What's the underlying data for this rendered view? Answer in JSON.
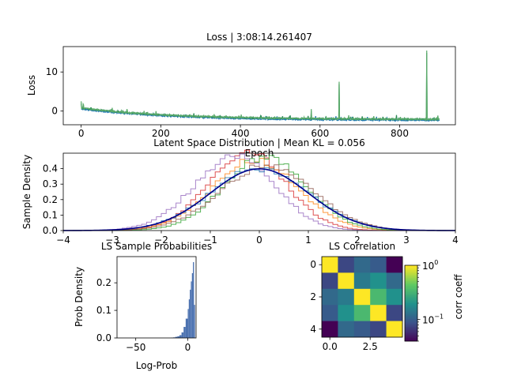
{
  "figure": {
    "background": "#ffffff"
  },
  "chart_data": [
    {
      "id": "loss",
      "type": "line",
      "title": "Loss | 3:08:14.261407",
      "xlabel": "Epoch",
      "ylabel": "Loss",
      "xlim": [
        -45,
        940
      ],
      "ylim": [
        -3.5,
        16.5
      ],
      "xticks": [
        0,
        200,
        400,
        600,
        800
      ],
      "yticks": [
        0,
        10
      ],
      "grid": false,
      "legend": "none",
      "colors": [
        "#1f77b4",
        "#2e8b57",
        "#5aaa6a"
      ],
      "x_range": [
        0,
        900
      ],
      "baseline_start": 0.8,
      "baseline_end": -2.1,
      "spikes": [
        {
          "epoch": 0,
          "loss": 2.5
        },
        {
          "epoch": 5,
          "loss": 1.8
        },
        {
          "epoch": 75,
          "loss": 0.5
        },
        {
          "epoch": 165,
          "loss": -0.3
        },
        {
          "epoch": 402,
          "loss": -0.9
        },
        {
          "epoch": 578,
          "loss": 0.5
        },
        {
          "epoch": 648,
          "loss": 7.5
        },
        {
          "epoch": 868,
          "loss": 15.5
        }
      ]
    },
    {
      "id": "latent",
      "type": "line",
      "title": "Latent Space Distribution | Mean KL = 0.056",
      "xlabel": "",
      "ylabel": "Sample Density",
      "xlim": [
        -4,
        4
      ],
      "ylim": [
        0,
        0.5
      ],
      "xticks": [
        -4,
        -3,
        -2,
        -1,
        0,
        1,
        2,
        3,
        4
      ],
      "yticks": [
        0.0,
        0.1,
        0.2,
        0.3,
        0.4
      ],
      "grid": false,
      "legend": "none",
      "reference": {
        "kind": "standard-normal",
        "mean": 0,
        "std": 1,
        "color": "#00008b"
      },
      "histograms": [
        {
          "mean": 0.05,
          "std": 0.85,
          "color": "#d62728",
          "skew": -0.5
        },
        {
          "mean": 0.12,
          "std": 0.9,
          "color": "#ff7f0e",
          "skew": -0.3
        },
        {
          "mean": 0.25,
          "std": 0.85,
          "color": "#2ca02c",
          "skew": -0.2
        },
        {
          "mean": -0.05,
          "std": 0.95,
          "color": "#9467bd",
          "skew": -0.8
        },
        {
          "mean": 0.15,
          "std": 0.95,
          "color": "#8c564b",
          "skew": 0.0
        },
        {
          "mean": 0.0,
          "std": 1.0,
          "color": "#1f77b4",
          "skew": 0.0
        }
      ]
    },
    {
      "id": "ls-prob",
      "type": "bar",
      "title": "LS Sample Probabilities",
      "xlabel": "Log-Prob",
      "ylabel": "Prob Density",
      "xlim": [
        -68,
        8
      ],
      "ylim": [
        0,
        0.295
      ],
      "xticks": [
        -50,
        0
      ],
      "yticks": [
        0.0,
        0.1,
        0.2
      ],
      "grid": false,
      "legend": "none",
      "color": "#4c72b0",
      "bins": [
        {
          "x0": -16,
          "x1": -14,
          "y": 0.001
        },
        {
          "x0": -14,
          "x1": -12,
          "y": 0.002
        },
        {
          "x0": -12,
          "x1": -10,
          "y": 0.004
        },
        {
          "x0": -10,
          "x1": -8,
          "y": 0.006
        },
        {
          "x0": -8,
          "x1": -6,
          "y": 0.01
        },
        {
          "x0": -6,
          "x1": -4,
          "y": 0.02
        },
        {
          "x0": -4,
          "x1": -2,
          "y": 0.04
        },
        {
          "x0": -2,
          "x1": 0,
          "y": 0.07
        },
        {
          "x0": 0,
          "x1": 1,
          "y": 0.105
        },
        {
          "x0": 1,
          "x1": 2,
          "y": 0.14
        },
        {
          "x0": 2,
          "x1": 3,
          "y": 0.175
        },
        {
          "x0": 3,
          "x1": 4,
          "y": 0.205
        },
        {
          "x0": 4,
          "x1": 5,
          "y": 0.235
        },
        {
          "x0": 5,
          "x1": 6,
          "y": 0.275
        },
        {
          "x0": 6,
          "x1": 7,
          "y": 0.12
        }
      ]
    },
    {
      "id": "ls-corr",
      "type": "heatmap",
      "title": "LS Correlation",
      "xlabel": "",
      "ylabel": "",
      "xticks": [
        0.0,
        2.5
      ],
      "yticks": [
        0,
        2,
        4
      ],
      "colormap": "viridis",
      "color_scale": "log",
      "colorbar_label": "corr coeff",
      "colorbar_ticks": [
        {
          "value": 1,
          "label": "10",
          "exp": "0"
        },
        {
          "value": 0.1,
          "label": "10",
          "exp": "−1"
        }
      ],
      "vmin": 0.04,
      "vmax": 1.0,
      "matrix": [
        [
          1.0,
          0.08,
          0.12,
          0.1,
          0.04
        ],
        [
          0.08,
          1.0,
          0.15,
          0.2,
          0.12
        ],
        [
          0.12,
          0.15,
          1.0,
          0.35,
          0.2
        ],
        [
          0.1,
          0.2,
          0.35,
          1.0,
          0.08
        ],
        [
          0.04,
          0.12,
          0.1,
          0.08,
          1.0
        ]
      ]
    }
  ]
}
